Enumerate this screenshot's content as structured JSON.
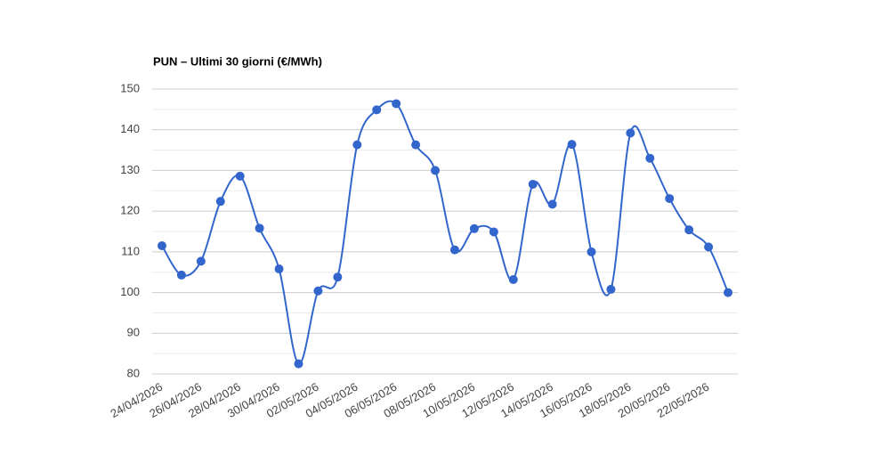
{
  "chart_data": {
    "type": "line",
    "title": "PUN – Ultimi 30 giorni (€/MWh)",
    "categories": [
      "24/04/2026",
      null,
      "26/04/2026",
      null,
      "28/04/2026",
      null,
      "30/04/2026",
      null,
      "02/05/2026",
      null,
      "04/05/2026",
      null,
      "06/05/2026",
      null,
      "08/05/2026",
      null,
      "10/05/2026",
      null,
      "12/05/2026",
      null,
      "14/05/2026",
      null,
      "16/05/2026",
      null,
      "18/05/2026",
      null,
      "20/05/2026",
      null,
      "22/05/2026",
      null
    ],
    "series": [
      {
        "name": "PUN",
        "color": "#3366cc",
        "values": [
          111.5,
          104.3,
          107.7,
          122.4,
          128.6,
          115.8,
          105.8,
          82.5,
          100.4,
          103.8,
          136.3,
          144.9,
          146.4,
          136.3,
          130.0,
          110.5,
          115.7,
          114.9,
          103.2,
          126.6,
          121.7,
          136.4,
          110.0,
          100.8,
          139.2,
          133.0,
          123.1,
          115.4,
          111.2,
          100.0
        ]
      }
    ],
    "ylim": [
      80,
      150
    ],
    "yticks": [
      80,
      90,
      100,
      110,
      120,
      130,
      140,
      150
    ],
    "grid": true,
    "smooth": true
  }
}
